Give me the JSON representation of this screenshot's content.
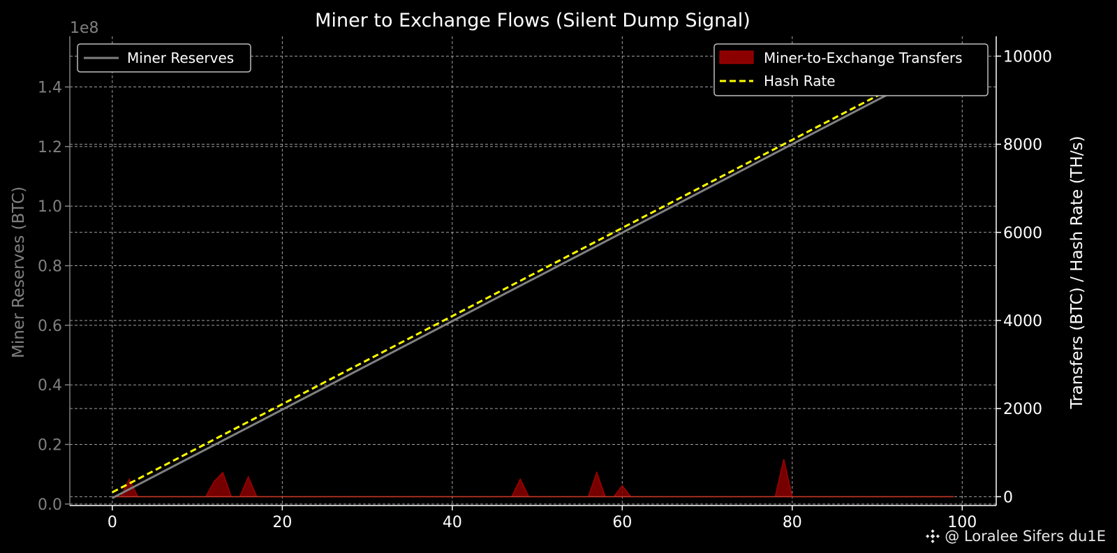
{
  "chart_data": {
    "type": "line",
    "title": "Miner to Exchange Flows (Silent Dump Signal)",
    "xlim": [
      -5,
      104
    ],
    "x_ticks": [
      0,
      20,
      40,
      60,
      80,
      100
    ],
    "left_axis": {
      "label": "Miner Reserves (BTC)",
      "offset_text": "1e8",
      "ylim": [
        -0.005,
        1.57
      ],
      "ticks": [
        0.0,
        0.2,
        0.4,
        0.6,
        0.8,
        1.0,
        1.2,
        1.4
      ],
      "tick_labels": [
        "0.0",
        "0.2",
        "0.4",
        "0.6",
        "0.8",
        "1.0",
        "1.2",
        "1.4"
      ],
      "color": "#808080"
    },
    "right_axis": {
      "label": "Transfers (BTC) / Hash Rate (TH/s)",
      "ylim": [
        -200,
        10450
      ],
      "ticks": [
        0,
        2000,
        4000,
        6000,
        8000,
        10000
      ],
      "tick_labels": [
        "0",
        "2000",
        "4000",
        "6000",
        "8000",
        "10000"
      ],
      "color": "#ffffff"
    },
    "grid": true,
    "series": [
      {
        "name": "Miner Reserves",
        "axis": "left",
        "style": "line",
        "color": "#808080",
        "x": [
          0,
          99
        ],
        "y": [
          0.02,
          1.49
        ]
      },
      {
        "name": "Hash Rate",
        "axis": "right",
        "style": "dashed",
        "color": "#ffff00",
        "x": [
          0,
          99
        ],
        "y": [
          100,
          10000
        ]
      },
      {
        "name": "Miner-to-Exchange Transfers",
        "axis": "right",
        "style": "area",
        "color": "#8b0000",
        "baseline": 0,
        "x": [
          0,
          1,
          2,
          3,
          4,
          11,
          12,
          13,
          14,
          15,
          16,
          17,
          18,
          47,
          48,
          49,
          56,
          57,
          58,
          59,
          60,
          61,
          78,
          79,
          80,
          99
        ],
        "y": [
          0,
          0,
          400,
          0,
          0,
          0,
          350,
          550,
          0,
          0,
          450,
          0,
          0,
          0,
          400,
          0,
          0,
          550,
          0,
          0,
          250,
          0,
          0,
          850,
          0,
          0
        ]
      }
    ],
    "legends": [
      {
        "placement": "upper-left",
        "entries": [
          "Miner Reserves"
        ]
      },
      {
        "placement": "upper-right",
        "entries": [
          "Miner-to-Exchange Transfers",
          "Hash Rate"
        ]
      }
    ]
  },
  "watermark": {
    "text": "@ Loralee Sifers du1E",
    "icon": "binance-logo-icon"
  }
}
